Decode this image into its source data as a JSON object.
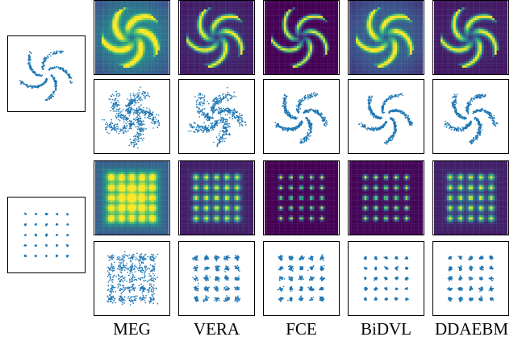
{
  "figure": {
    "columns": [
      {
        "id": "meg",
        "label": "MEG"
      },
      {
        "id": "vera",
        "label": "VERA"
      },
      {
        "id": "fce",
        "label": "FCE"
      },
      {
        "id": "bidvl",
        "label": "BiDVL"
      },
      {
        "id": "ddaebm",
        "label": "DDAEBM"
      }
    ],
    "datasets": [
      {
        "id": "pinwheel",
        "shape": "pinwheel, 5 arms"
      },
      {
        "id": "grid",
        "shape": "5x5 grid of gaussians"
      }
    ],
    "colors": {
      "scatter": "#1f77b4",
      "viridis_low": "#440154",
      "viridis_mid": "#21918c",
      "viridis_high": "#fde725"
    }
  }
}
